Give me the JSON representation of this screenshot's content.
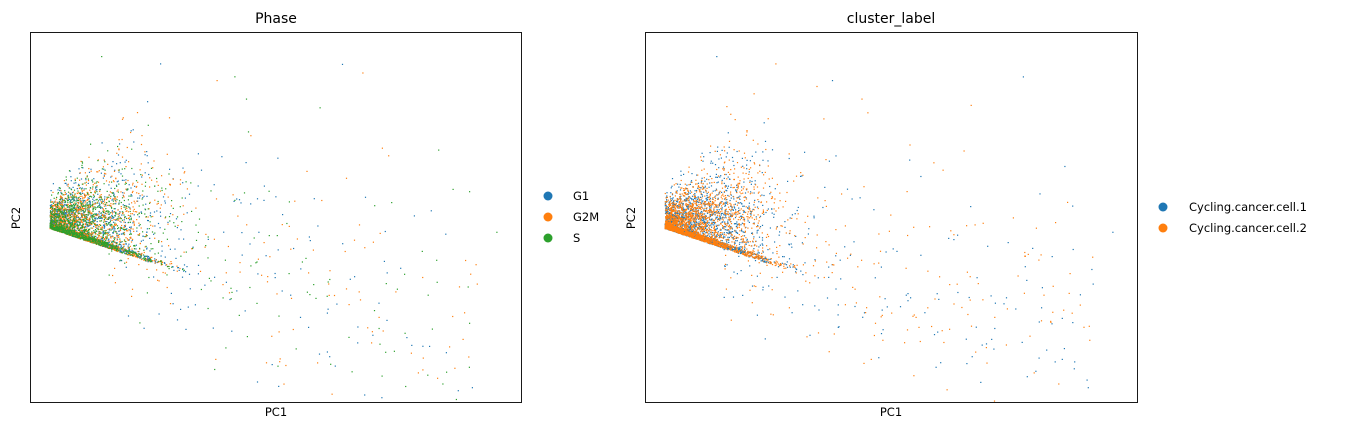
{
  "chart_data": [
    {
      "type": "scatter",
      "title": "Phase",
      "xlabel": "PC1",
      "ylabel": "PC2",
      "xlim": [
        0,
        10
      ],
      "ylim": [
        0,
        10
      ],
      "grid": false,
      "legend_position": "right",
      "series": [
        {
          "name": "G1",
          "color": "#1f77b4",
          "order": 0
        },
        {
          "name": "G2M",
          "color": "#ff7f0e",
          "order": 1
        },
        {
          "name": "S",
          "color": "#2ca02c",
          "order": 2
        }
      ],
      "point_cloud": {
        "anchor": [
          0.4,
          4.7
        ],
        "core_center": [
          1.3,
          4.8
        ],
        "core_spread": [
          0.75,
          0.55
        ],
        "tail_direction": [
          1.0,
          -0.38
        ],
        "n_core": 4200,
        "n_tail": 380,
        "mix": [
          0.34,
          0.36,
          0.3
        ]
      },
      "outliers": [
        [
          6.9,
          10.7
        ],
        [
          3.0,
          10.0
        ],
        [
          1.45,
          9.35
        ],
        [
          2.65,
          9.15
        ],
        [
          3.8,
          8.7
        ],
        [
          4.4,
          8.2
        ],
        [
          4.2,
          5.5
        ],
        [
          6.7,
          4.8
        ],
        [
          9.5,
          4.6
        ],
        [
          6.6,
          3.4
        ],
        [
          9.1,
          3.2
        ],
        [
          8.1,
          2.9
        ],
        [
          5.3,
          2.9
        ],
        [
          7.1,
          2.3
        ],
        [
          7.1,
          2.0
        ],
        [
          5.5,
          2.3
        ],
        [
          8.0,
          1.2
        ],
        [
          8.4,
          0.5
        ],
        [
          9.0,
          0.4
        ],
        [
          7.9,
          0.8
        ]
      ]
    },
    {
      "type": "scatter",
      "title": "cluster_label",
      "xlabel": "PC1",
      "ylabel": "PC2",
      "xlim": [
        0,
        10
      ],
      "ylim": [
        0,
        10
      ],
      "grid": false,
      "legend_position": "right",
      "series": [
        {
          "name": "Cycling.cancer.cell.1",
          "color": "#1f77b4",
          "order": 0
        },
        {
          "name": "Cycling.cancer.cell.2",
          "color": "#ff7f0e",
          "order": 1
        }
      ],
      "point_cloud": {
        "anchor": [
          0.4,
          4.7
        ],
        "core_center": [
          1.3,
          4.8
        ],
        "core_spread": [
          0.75,
          0.55
        ],
        "tail_direction": [
          1.0,
          -0.38
        ],
        "n_core": 4200,
        "n_tail": 380,
        "mix": [
          0.48,
          0.52
        ]
      },
      "outliers": [
        [
          6.9,
          10.7
        ],
        [
          3.0,
          10.0
        ],
        [
          1.45,
          9.35
        ],
        [
          2.65,
          9.15
        ],
        [
          3.8,
          8.7
        ],
        [
          4.4,
          8.2
        ],
        [
          4.2,
          5.5
        ],
        [
          6.7,
          4.8
        ],
        [
          9.5,
          4.6
        ],
        [
          6.6,
          3.4
        ],
        [
          9.1,
          3.2
        ],
        [
          8.1,
          2.9
        ],
        [
          5.3,
          2.9
        ],
        [
          7.1,
          2.3
        ],
        [
          7.1,
          2.0
        ],
        [
          5.5,
          2.3
        ],
        [
          8.0,
          1.2
        ],
        [
          8.4,
          0.5
        ],
        [
          9.0,
          0.4
        ],
        [
          7.9,
          0.8
        ]
      ]
    }
  ]
}
